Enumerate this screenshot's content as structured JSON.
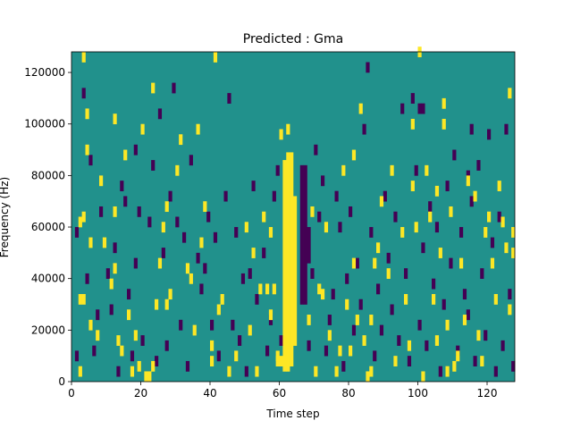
{
  "chart_data": {
    "type": "heatmap",
    "title": "Predicted : Gma",
    "xlabel": "Time step",
    "ylabel": "Frequency (Hz)",
    "xlim": [
      0,
      128
    ],
    "ylim": [
      0,
      128000
    ],
    "x_ticks": [
      0,
      20,
      40,
      60,
      80,
      100,
      120
    ],
    "y_ticks": [
      0,
      20000,
      40000,
      60000,
      80000,
      100000,
      120000
    ],
    "x_tick_labels": [
      "0",
      "20",
      "40",
      "60",
      "80",
      "100",
      "120"
    ],
    "y_tick_labels": [
      "0",
      "20000",
      "40000",
      "60000",
      "80000",
      "100000",
      "120000"
    ],
    "grid": false,
    "colormap": {
      "low": "#440154",
      "mid": "#21918c",
      "high": "#fde725"
    },
    "background_value": "mid",
    "cell_size": {
      "time_steps": 1,
      "frequency_hz": 2000
    },
    "high_columns": [
      {
        "x": 61,
        "y_from": 4000,
        "y_to": 86000
      },
      {
        "x": 62,
        "y_from": 4000,
        "y_to": 89000
      },
      {
        "x": 63,
        "y_from": 6000,
        "y_to": 89000
      },
      {
        "x": 64,
        "y_from": 14000,
        "y_to": 72000
      }
    ],
    "low_columns": [
      {
        "x": 66,
        "y_from": 30000,
        "y_to": 84000
      },
      {
        "x": 67,
        "y_from": 30000,
        "y_to": 84000
      },
      {
        "x": 68,
        "y_from": 46000,
        "y_to": 60000
      }
    ],
    "high_cells": [
      [
        2,
        2000
      ],
      [
        2,
        30000
      ],
      [
        2,
        60000
      ],
      [
        3,
        30000
      ],
      [
        3,
        62000
      ],
      [
        3,
        124000
      ],
      [
        4,
        102000
      ],
      [
        4,
        88000
      ],
      [
        5,
        52000
      ],
      [
        5,
        20000
      ],
      [
        7,
        16000
      ],
      [
        8,
        76000
      ],
      [
        9,
        52000
      ],
      [
        11,
        36000
      ],
      [
        12,
        64000
      ],
      [
        12,
        100000
      ],
      [
        12,
        42000
      ],
      [
        13,
        14000
      ],
      [
        14,
        10000
      ],
      [
        15,
        86000
      ],
      [
        16,
        24000
      ],
      [
        17,
        2000
      ],
      [
        18,
        16000
      ],
      [
        19,
        4000
      ],
      [
        20,
        96000
      ],
      [
        21,
        0
      ],
      [
        22,
        0
      ],
      [
        23,
        112000
      ],
      [
        23,
        4000
      ],
      [
        24,
        28000
      ],
      [
        25,
        44000
      ],
      [
        26,
        58000
      ],
      [
        27,
        28000
      ],
      [
        27,
        66000
      ],
      [
        28,
        32000
      ],
      [
        30,
        80000
      ],
      [
        31,
        92000
      ],
      [
        33,
        42000
      ],
      [
        34,
        38000
      ],
      [
        35,
        18000
      ],
      [
        36,
        96000
      ],
      [
        37,
        52000
      ],
      [
        38,
        66000
      ],
      [
        40,
        12000
      ],
      [
        40,
        6000
      ],
      [
        41,
        124000
      ],
      [
        42,
        26000
      ],
      [
        43,
        30000
      ],
      [
        45,
        2000
      ],
      [
        47,
        8000
      ],
      [
        50,
        58000
      ],
      [
        51,
        18000
      ],
      [
        52,
        48000
      ],
      [
        53,
        2000
      ],
      [
        54,
        34000
      ],
      [
        55,
        62000
      ],
      [
        56,
        34000
      ],
      [
        57,
        24000
      ],
      [
        57,
        56000
      ],
      [
        58,
        34000
      ],
      [
        59,
        6000
      ],
      [
        60,
        94000
      ],
      [
        60,
        6000
      ],
      [
        59,
        8000
      ],
      [
        62,
        96000
      ],
      [
        63,
        20000
      ],
      [
        68,
        22000
      ],
      [
        69,
        64000
      ],
      [
        70,
        2000
      ],
      [
        71,
        34000
      ],
      [
        72,
        32000
      ],
      [
        73,
        58000
      ],
      [
        74,
        16000
      ],
      [
        76,
        2000
      ],
      [
        77,
        10000
      ],
      [
        78,
        80000
      ],
      [
        79,
        28000
      ],
      [
        80,
        10000
      ],
      [
        81,
        86000
      ],
      [
        81,
        44000
      ],
      [
        82,
        22000
      ],
      [
        83,
        104000
      ],
      [
        84,
        14000
      ],
      [
        85,
        0
      ],
      [
        86,
        22000
      ],
      [
        86,
        2000
      ],
      [
        87,
        44000
      ],
      [
        88,
        50000
      ],
      [
        89,
        68000
      ],
      [
        91,
        40000
      ],
      [
        92,
        80000
      ],
      [
        93,
        6000
      ],
      [
        95,
        56000
      ],
      [
        96,
        30000
      ],
      [
        97,
        12000
      ],
      [
        98,
        98000
      ],
      [
        98,
        74000
      ],
      [
        99,
        58000
      ],
      [
        100,
        126000
      ],
      [
        101,
        0
      ],
      [
        102,
        80000
      ],
      [
        103,
        62000
      ],
      [
        104,
        30000
      ],
      [
        105,
        14000
      ],
      [
        105,
        72000
      ],
      [
        106,
        48000
      ],
      [
        107,
        98000
      ],
      [
        107,
        106000
      ],
      [
        108,
        20000
      ],
      [
        108,
        2000
      ],
      [
        109,
        64000
      ],
      [
        110,
        4000
      ],
      [
        111,
        8000
      ],
      [
        112,
        44000
      ],
      [
        113,
        22000
      ],
      [
        114,
        76000
      ],
      [
        116,
        70000
      ],
      [
        117,
        16000
      ],
      [
        118,
        6000
      ],
      [
        119,
        56000
      ],
      [
        120,
        62000
      ],
      [
        121,
        44000
      ],
      [
        122,
        30000
      ],
      [
        123,
        74000
      ],
      [
        124,
        60000
      ],
      [
        125,
        50000
      ],
      [
        126,
        26000
      ],
      [
        127,
        48000
      ],
      [
        126,
        110000
      ],
      [
        127,
        56000
      ]
    ],
    "low_cells": [
      [
        1,
        8000
      ],
      [
        1,
        56000
      ],
      [
        3,
        110000
      ],
      [
        4,
        38000
      ],
      [
        5,
        84000
      ],
      [
        6,
        10000
      ],
      [
        7,
        24000
      ],
      [
        8,
        64000
      ],
      [
        10,
        40000
      ],
      [
        11,
        26000
      ],
      [
        12,
        50000
      ],
      [
        13,
        2000
      ],
      [
        14,
        74000
      ],
      [
        15,
        68000
      ],
      [
        16,
        32000
      ],
      [
        17,
        8000
      ],
      [
        18,
        44000
      ],
      [
        18,
        88000
      ],
      [
        19,
        64000
      ],
      [
        20,
        14000
      ],
      [
        22,
        60000
      ],
      [
        23,
        82000
      ],
      [
        24,
        6000
      ],
      [
        25,
        102000
      ],
      [
        26,
        48000
      ],
      [
        27,
        12000
      ],
      [
        28,
        70000
      ],
      [
        29,
        112000
      ],
      [
        30,
        60000
      ],
      [
        31,
        20000
      ],
      [
        32,
        54000
      ],
      [
        33,
        4000
      ],
      [
        34,
        84000
      ],
      [
        36,
        46000
      ],
      [
        37,
        34000
      ],
      [
        38,
        42000
      ],
      [
        39,
        62000
      ],
      [
        40,
        20000
      ],
      [
        41,
        54000
      ],
      [
        42,
        8000
      ],
      [
        44,
        70000
      ],
      [
        45,
        108000
      ],
      [
        46,
        20000
      ],
      [
        47,
        56000
      ],
      [
        48,
        14000
      ],
      [
        49,
        38000
      ],
      [
        50,
        2000
      ],
      [
        51,
        40000
      ],
      [
        52,
        74000
      ],
      [
        53,
        30000
      ],
      [
        55,
        48000
      ],
      [
        56,
        10000
      ],
      [
        57,
        22000
      ],
      [
        58,
        70000
      ],
      [
        59,
        80000
      ],
      [
        60,
        14000
      ],
      [
        68,
        12000
      ],
      [
        69,
        40000
      ],
      [
        70,
        88000
      ],
      [
        71,
        62000
      ],
      [
        72,
        76000
      ],
      [
        73,
        10000
      ],
      [
        74,
        22000
      ],
      [
        75,
        32000
      ],
      [
        76,
        70000
      ],
      [
        77,
        58000
      ],
      [
        78,
        4000
      ],
      [
        79,
        38000
      ],
      [
        80,
        64000
      ],
      [
        81,
        18000
      ],
      [
        82,
        44000
      ],
      [
        83,
        28000
      ],
      [
        84,
        96000
      ],
      [
        85,
        120000
      ],
      [
        86,
        56000
      ],
      [
        87,
        8000
      ],
      [
        88,
        34000
      ],
      [
        89,
        18000
      ],
      [
        90,
        70000
      ],
      [
        91,
        46000
      ],
      [
        92,
        26000
      ],
      [
        93,
        62000
      ],
      [
        94,
        14000
      ],
      [
        95,
        104000
      ],
      [
        96,
        40000
      ],
      [
        97,
        6000
      ],
      [
        98,
        108000
      ],
      [
        99,
        80000
      ],
      [
        100,
        20000
      ],
      [
        101,
        50000
      ],
      [
        102,
        12000
      ],
      [
        103,
        66000
      ],
      [
        104,
        36000
      ],
      [
        105,
        58000
      ],
      [
        106,
        2000
      ],
      [
        107,
        28000
      ],
      [
        108,
        74000
      ],
      [
        109,
        44000
      ],
      [
        110,
        86000
      ],
      [
        111,
        10000
      ],
      [
        112,
        56000
      ],
      [
        113,
        32000
      ],
      [
        114,
        24000
      ],
      [
        115,
        68000
      ],
      [
        116,
        6000
      ],
      [
        117,
        82000
      ],
      [
        118,
        40000
      ],
      [
        119,
        16000
      ],
      [
        120,
        94000
      ],
      [
        121,
        52000
      ],
      [
        122,
        2000
      ],
      [
        123,
        62000
      ],
      [
        124,
        12000
      ],
      [
        125,
        96000
      ],
      [
        126,
        32000
      ],
      [
        127,
        4000
      ],
      [
        101,
        104000
      ],
      [
        100,
        104000
      ],
      [
        115,
        96000
      ],
      [
        114,
        78000
      ]
    ]
  }
}
